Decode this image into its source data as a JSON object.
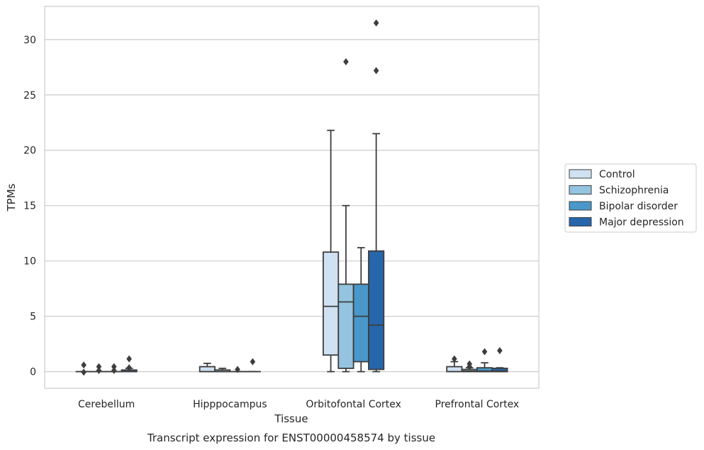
{
  "chart_data": {
    "type": "box",
    "title": "",
    "caption": "Transcript expression for ENST00000458574 by tissue",
    "xlabel": "Tissue",
    "ylabel": "TPMs",
    "ylim": [
      -1.5,
      33
    ],
    "yticks": [
      0,
      5,
      10,
      15,
      20,
      25,
      30
    ],
    "grid": "horizontal",
    "legend_position": "right",
    "categories": [
      "Cerebellum",
      "Hipppocampus",
      "Orbitofontal Cortex",
      "Prefrontal Cortex"
    ],
    "series": [
      {
        "name": "Control",
        "color": "#d0e1f2",
        "boxes": [
          {
            "min": 0,
            "q1": 0,
            "median": 0,
            "q3": 0,
            "max": 0,
            "outliers": [
              0.6,
              -0.05
            ]
          },
          {
            "min": 0,
            "q1": 0,
            "median": 0,
            "q3": 0.45,
            "max": 0.75,
            "outliers": []
          },
          {
            "min": 0,
            "q1": 1.5,
            "median": 5.9,
            "q3": 10.8,
            "max": 21.8,
            "outliers": []
          },
          {
            "min": 0,
            "q1": 0,
            "median": 0,
            "q3": 0.45,
            "max": 0.9,
            "outliers": [
              1.15
            ]
          }
        ]
      },
      {
        "name": "Schizophrenia",
        "color": "#94c4df",
        "boxes": [
          {
            "min": 0,
            "q1": 0,
            "median": 0,
            "q3": 0,
            "max": 0,
            "outliers": [
              0.45,
              0.1
            ]
          },
          {
            "min": 0,
            "q1": 0,
            "median": 0,
            "q3": 0.15,
            "max": 0.3,
            "outliers": []
          },
          {
            "min": 0,
            "q1": 0.3,
            "median": 6.3,
            "q3": 7.9,
            "max": 15.0,
            "outliers": [
              28.0
            ]
          },
          {
            "min": 0,
            "q1": 0,
            "median": 0.05,
            "q3": 0.2,
            "max": 0.35,
            "outliers": [
              0.7,
              0.45
            ]
          }
        ]
      },
      {
        "name": "Bipolar disorder",
        "color": "#4a98c9",
        "boxes": [
          {
            "min": 0,
            "q1": 0,
            "median": 0,
            "q3": 0,
            "max": 0,
            "outliers": [
              0.45,
              0.1
            ]
          },
          {
            "min": 0,
            "q1": 0,
            "median": 0,
            "q3": 0,
            "max": 0,
            "outliers": [
              0.2
            ]
          },
          {
            "min": 0,
            "q1": 0.9,
            "median": 5.0,
            "q3": 7.9,
            "max": 11.2,
            "outliers": []
          },
          {
            "min": 0,
            "q1": 0,
            "median": 0.05,
            "q3": 0.35,
            "max": 0.8,
            "outliers": [
              1.8
            ]
          }
        ]
      },
      {
        "name": "Major depression",
        "color": "#2766ab",
        "boxes": [
          {
            "min": 0,
            "q1": 0,
            "median": 0,
            "q3": 0.15,
            "max": 0.3,
            "outliers": [
              1.15,
              0.35
            ]
          },
          {
            "min": 0,
            "q1": 0,
            "median": 0,
            "q3": 0,
            "max": 0,
            "outliers": [
              0.9
            ]
          },
          {
            "min": 0,
            "q1": 0.2,
            "median": 4.2,
            "q3": 10.9,
            "max": 21.5,
            "outliers": [
              27.2,
              31.5
            ]
          },
          {
            "min": 0,
            "q1": 0,
            "median": 0.05,
            "q3": 0.3,
            "max": 0.35,
            "outliers": [
              1.9
            ]
          }
        ]
      }
    ]
  }
}
